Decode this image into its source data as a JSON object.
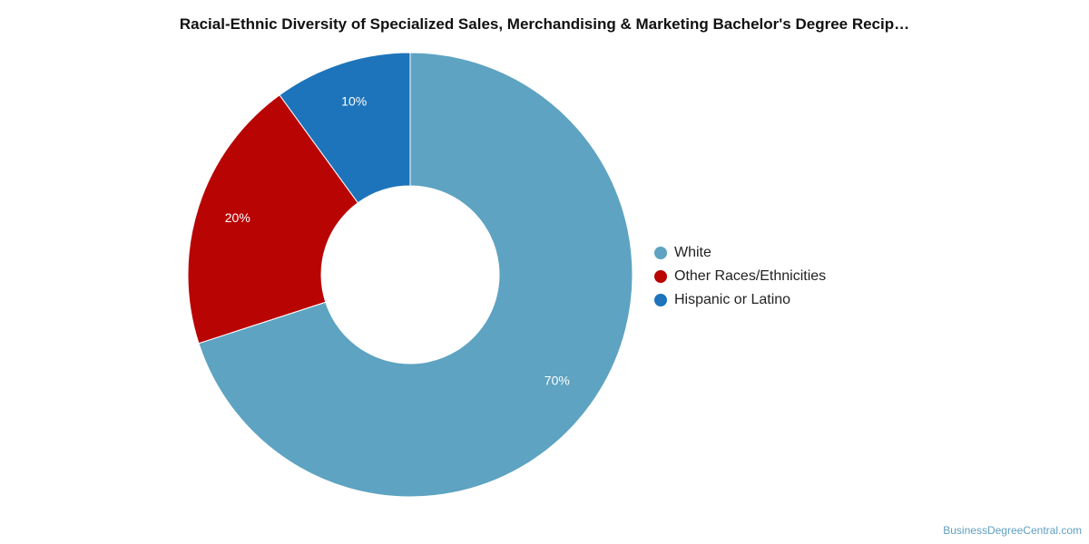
{
  "chart_data": {
    "type": "pie",
    "title": "Racial-Ethnic Diversity of Specialized Sales, Merchandising & Marketing Bachelor's Degree Recip…",
    "donut": true,
    "legend_position": "right",
    "slices": [
      {
        "label": "White",
        "value": 70,
        "value_label": "70%",
        "color": "#5ea3c1"
      },
      {
        "label": "Other Races/Ethnicities",
        "value": 20,
        "value_label": "20%",
        "color": "#b90404"
      },
      {
        "label": "Hispanic or Latino",
        "value": 10,
        "value_label": "10%",
        "color": "#1d74ba"
      }
    ]
  },
  "footer": {
    "source": "BusinessDegreeCentral.com"
  }
}
